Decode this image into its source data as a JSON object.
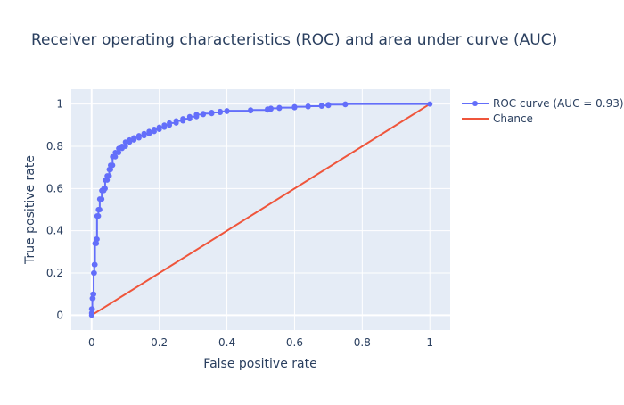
{
  "chart_data": {
    "type": "line",
    "title": "Receiver operating characteristics (ROC) and area under curve (AUC)",
    "xlabel": "False positive rate",
    "ylabel": "True positive rate",
    "xlim": [
      -0.06,
      1.06
    ],
    "ylim": [
      -0.07,
      1.07
    ],
    "xticks": [
      0,
      0.2,
      0.4,
      0.6,
      0.8,
      1
    ],
    "xtick_labels": [
      "0",
      "0.2",
      "0.4",
      "0.6",
      "0.8",
      "1"
    ],
    "yticks": [
      0,
      0.2,
      0.4,
      0.6,
      0.8,
      1
    ],
    "ytick_labels": [
      "0",
      "0.2",
      "0.4",
      "0.6",
      "0.8",
      "1"
    ],
    "grid": true,
    "legend_position": "top-right",
    "background_color": "#e5ecf6",
    "series": [
      {
        "name": "ROC curve (AUC = 0.93)",
        "mode": "lines+markers",
        "color": "#636efa",
        "x": [
          0,
          0,
          0,
          0.002,
          0.002,
          0.004,
          0.004,
          0.006,
          0.006,
          0.008,
          0.008,
          0.01,
          0.01,
          0.014,
          0.014,
          0.016,
          0.016,
          0.02,
          0.02,
          0.024,
          0.024,
          0.03,
          0.03,
          0.036,
          0.036,
          0.04,
          0.04,
          0.046,
          0.046,
          0.052,
          0.052,
          0.056,
          0.056,
          0.062,
          0.062,
          0.07,
          0.07,
          0.08,
          0.08,
          0.09,
          0.09,
          0.1,
          0.1,
          0.112,
          0.112,
          0.125,
          0.125,
          0.14,
          0.14,
          0.155,
          0.155,
          0.17,
          0.17,
          0.185,
          0.185,
          0.2,
          0.2,
          0.215,
          0.215,
          0.23,
          0.23,
          0.25,
          0.25,
          0.27,
          0.27,
          0.29,
          0.29,
          0.31,
          0.31,
          0.33,
          0.33,
          0.355,
          0.355,
          0.38,
          0.38,
          0.4,
          0.4,
          0.47,
          0.47,
          0.52,
          0.52,
          0.53,
          0.53,
          0.555,
          0.555,
          0.6,
          0.6,
          0.64,
          0.64,
          0.68,
          0.68,
          0.7,
          0.7,
          0.75,
          0.75,
          1.0
        ],
        "y": [
          0,
          0.01,
          0.03,
          0.03,
          0.08,
          0.08,
          0.1,
          0.1,
          0.2,
          0.2,
          0.24,
          0.24,
          0.34,
          0.34,
          0.36,
          0.36,
          0.47,
          0.47,
          0.5,
          0.5,
          0.55,
          0.55,
          0.59,
          0.59,
          0.6,
          0.6,
          0.64,
          0.64,
          0.66,
          0.66,
          0.69,
          0.69,
          0.71,
          0.71,
          0.75,
          0.75,
          0.77,
          0.77,
          0.79,
          0.79,
          0.8,
          0.8,
          0.82,
          0.82,
          0.83,
          0.83,
          0.84,
          0.84,
          0.85,
          0.85,
          0.86,
          0.86,
          0.87,
          0.87,
          0.88,
          0.88,
          0.89,
          0.89,
          0.9,
          0.9,
          0.91,
          0.91,
          0.92,
          0.92,
          0.93,
          0.93,
          0.94,
          0.94,
          0.95,
          0.95,
          0.955,
          0.955,
          0.96,
          0.96,
          0.965,
          0.965,
          0.968,
          0.968,
          0.972,
          0.972,
          0.976,
          0.976,
          0.98,
          0.98,
          0.983,
          0.983,
          0.987,
          0.987,
          0.99,
          0.99,
          0.993,
          0.993,
          0.997,
          0.997,
          1.0,
          1.0
        ]
      },
      {
        "name": "Chance",
        "mode": "lines",
        "color": "#ef553b",
        "x": [
          0,
          1
        ],
        "y": [
          0,
          1
        ]
      }
    ]
  }
}
